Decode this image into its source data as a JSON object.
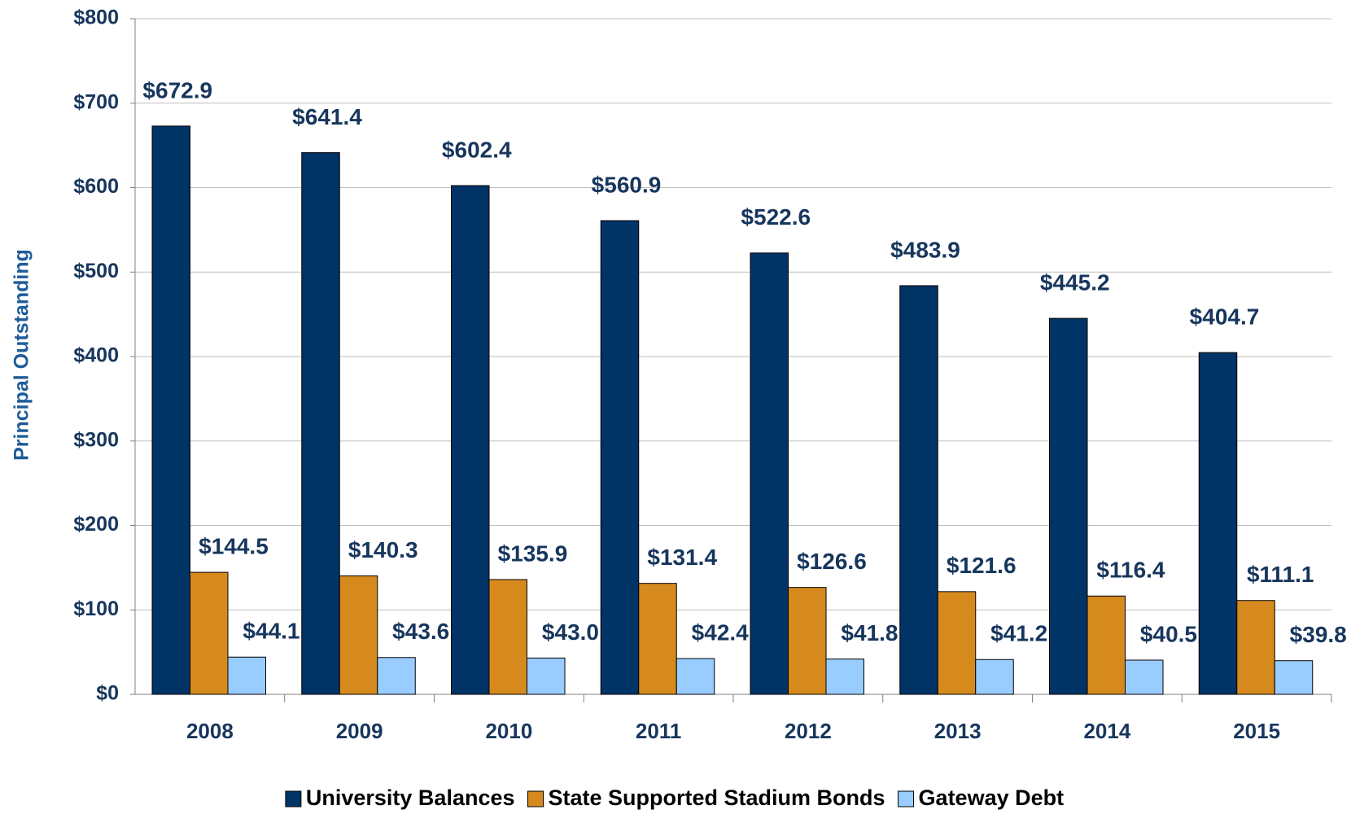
{
  "chart_data": {
    "type": "bar",
    "y_label": "Principal Outstanding",
    "categories": [
      "2008",
      "2009",
      "2010",
      "2011",
      "2012",
      "2013",
      "2014",
      "2015"
    ],
    "series": [
      {
        "name": "University Balances",
        "color": "#003366",
        "values": [
          672.9,
          641.4,
          602.4,
          560.9,
          522.6,
          483.9,
          445.2,
          404.7
        ],
        "value_labels": [
          "$672.9",
          "$641.4",
          "$602.4",
          "$560.9",
          "$522.6",
          "$483.9",
          "$445.2",
          "$404.7"
        ]
      },
      {
        "name": "State Supported Stadium Bonds",
        "color": "#d68a1e",
        "values": [
          144.5,
          140.3,
          135.9,
          131.4,
          126.6,
          121.6,
          116.4,
          111.1
        ],
        "value_labels": [
          "$144.5",
          "$140.3",
          "$135.9",
          "$131.4",
          "$126.6",
          "$121.6",
          "$116.4",
          "$111.1"
        ]
      },
      {
        "name": "Gateway Debt",
        "color": "#99ccff",
        "values": [
          44.1,
          43.6,
          43.0,
          42.4,
          41.8,
          41.2,
          40.5,
          39.8
        ],
        "value_labels": [
          "$44.1",
          "$43.6",
          "$43.0",
          "$42.4",
          "$41.8",
          "$41.2",
          "$40.5",
          "$39.8"
        ]
      }
    ],
    "ylim": [
      0,
      800
    ],
    "yticks": [
      {
        "value": 0,
        "label": "$0"
      },
      {
        "value": 100,
        "label": "$100"
      },
      {
        "value": 200,
        "label": "$200"
      },
      {
        "value": 300,
        "label": "$300"
      },
      {
        "value": 400,
        "label": "$400"
      },
      {
        "value": 500,
        "label": "$500"
      },
      {
        "value": 600,
        "label": "$600"
      },
      {
        "value": 700,
        "label": "$700"
      },
      {
        "value": 800,
        "label": "$800"
      }
    ],
    "grid": true,
    "legend": "bottom"
  }
}
